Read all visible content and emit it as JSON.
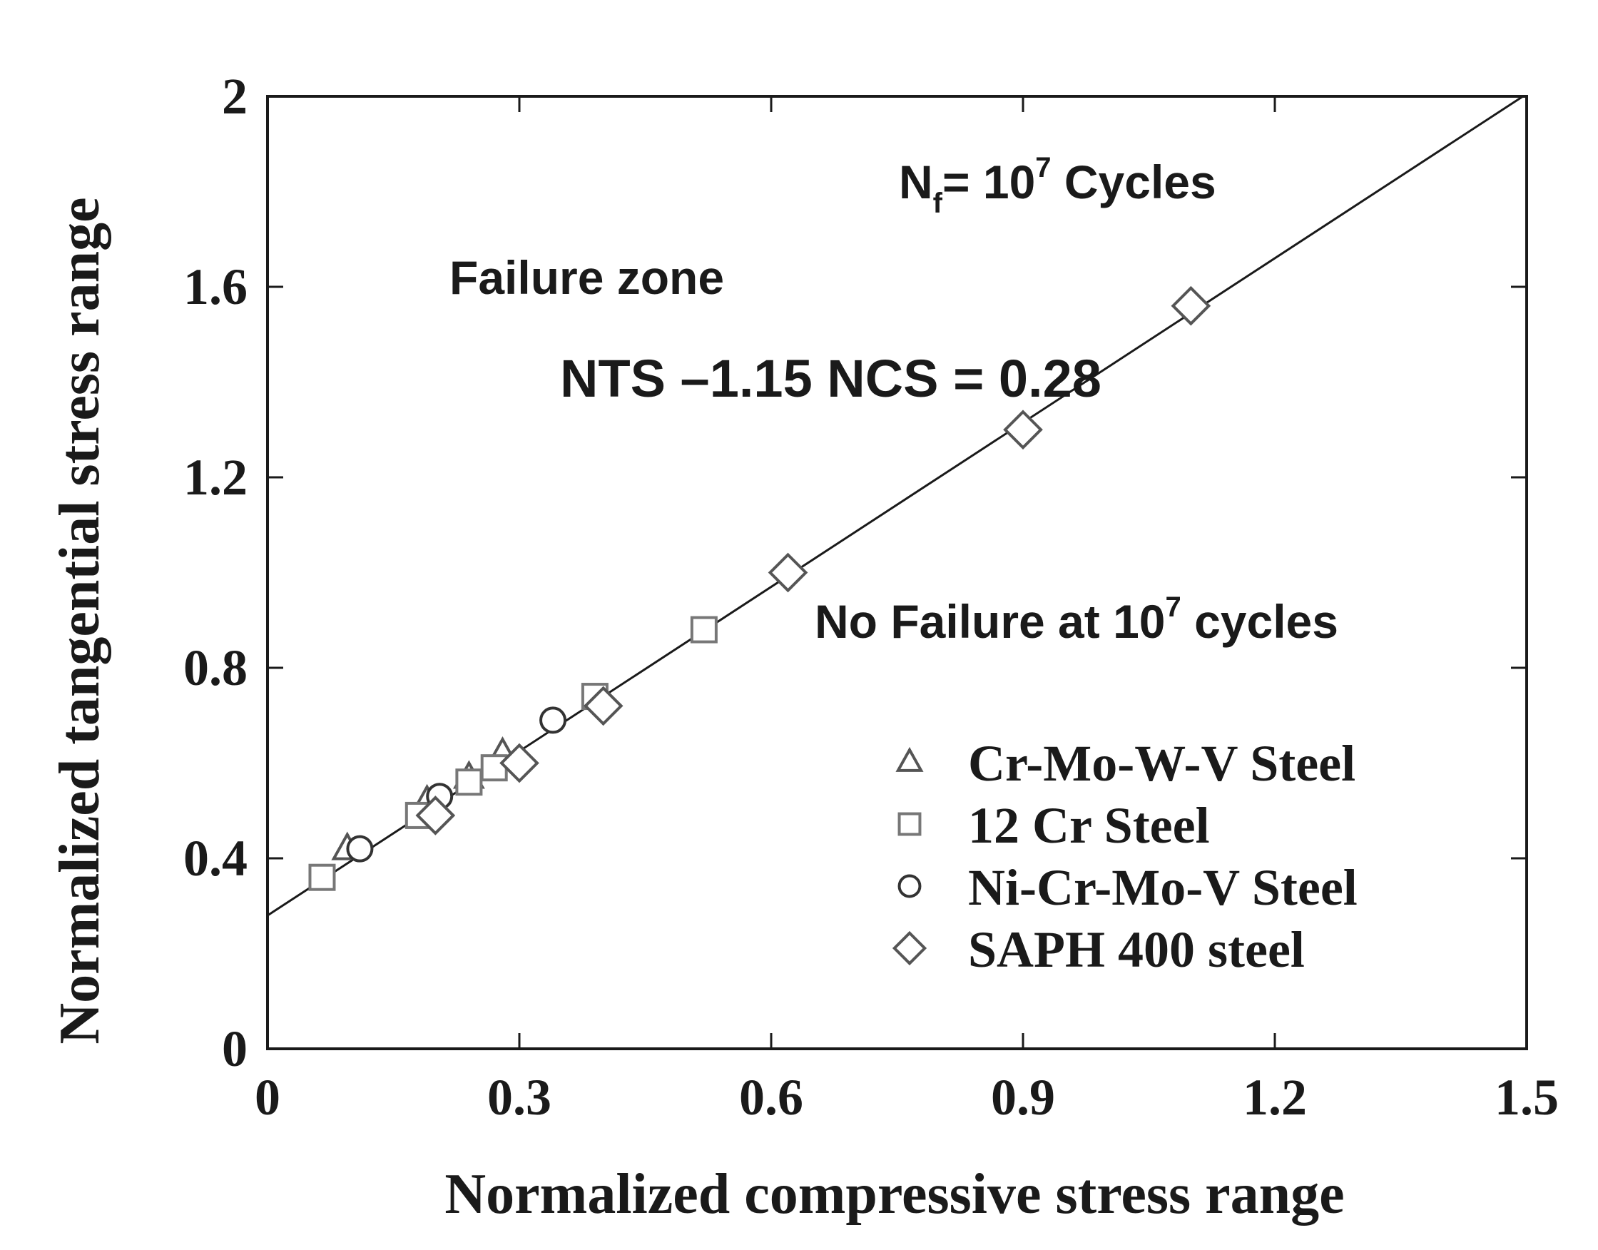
{
  "chart_data": {
    "type": "scatter",
    "title": "",
    "xlabel": "Normalized compressive stress range",
    "ylabel": "Normalized tangential stress range",
    "xlim": [
      0,
      1.5
    ],
    "ylim": [
      0,
      2
    ],
    "xticks": [
      "0",
      "0.3",
      "0.6",
      "0.9",
      "1.2",
      "1.5"
    ],
    "yticks": [
      "0",
      "0.4",
      "0.8",
      "1.2",
      "1.6",
      "2"
    ],
    "xtick_values": [
      0,
      0.3,
      0.6,
      0.9,
      1.2,
      1.5
    ],
    "ytick_values": [
      0,
      0.4,
      0.8,
      1.2,
      1.6,
      2.0
    ],
    "legend_position": "bottom-right",
    "fit_line": {
      "intercept": 0.28,
      "slope": 1.15
    },
    "series": [
      {
        "name": "Cr-Mo-W-V Steel",
        "marker": "triangle",
        "color": "#555555",
        "points": [
          [
            0.095,
            0.42
          ],
          [
            0.19,
            0.52
          ],
          [
            0.24,
            0.57
          ],
          [
            0.28,
            0.62
          ]
        ]
      },
      {
        "name": "12 Cr Steel",
        "marker": "square",
        "color": "#777777",
        "points": [
          [
            0.065,
            0.36
          ],
          [
            0.18,
            0.49
          ],
          [
            0.24,
            0.56
          ],
          [
            0.27,
            0.59
          ],
          [
            0.39,
            0.74
          ],
          [
            0.52,
            0.88
          ]
        ]
      },
      {
        "name": "Ni-Cr-Mo-V Steel",
        "marker": "circle",
        "color": "#333333",
        "points": [
          [
            0.11,
            0.42
          ],
          [
            0.205,
            0.53
          ],
          [
            0.34,
            0.69
          ]
        ]
      },
      {
        "name": "SAPH 400 steel",
        "marker": "diamond",
        "color": "#555555",
        "points": [
          [
            0.2,
            0.49
          ],
          [
            0.3,
            0.6
          ],
          [
            0.4,
            0.72
          ],
          [
            0.62,
            1.0
          ],
          [
            0.9,
            1.3
          ],
          [
            1.1,
            1.56
          ]
        ]
      }
    ],
    "annotations": {
      "cycles_label_prefix": "N",
      "cycles_label_subscript": "f",
      "cycles_label_mid": "= 10",
      "cycles_label_exponent": "7",
      "cycles_label_suffix": " Cycles",
      "failure_zone": "Failure zone",
      "equation": "NTS –1.15 NCS = 0.28",
      "no_failure_prefix": "No Failure at 10",
      "no_failure_exponent": "7",
      "no_failure_suffix": " cycles"
    }
  }
}
